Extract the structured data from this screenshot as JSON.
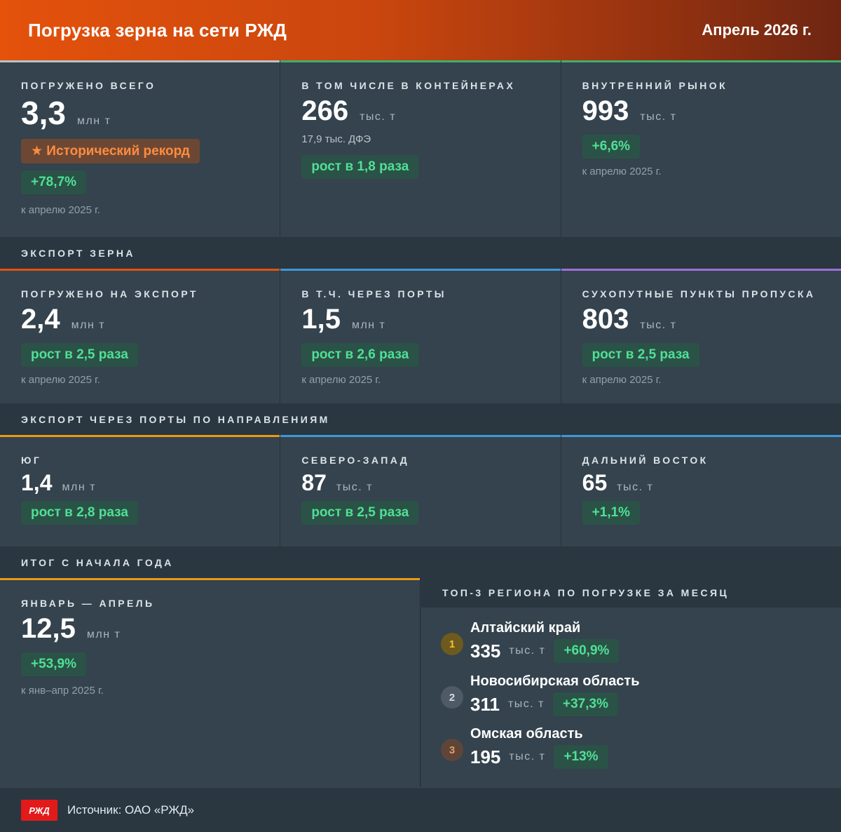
{
  "header": {
    "title": "Погрузка зерна на сети РЖД",
    "date": "Апрель 2026 г."
  },
  "colors": {
    "orange": "#e4520c",
    "green": "#4fe095",
    "blue": "#3f97d8",
    "purple": "#9d6fd8",
    "yellow": "#e89a12",
    "gray": "#b9c1c7"
  },
  "top_row": [
    {
      "label": "ПОГРУЖЕНО ВСЕГО",
      "value": "3,3",
      "unit": "млн т",
      "record": "★ Исторический рекорд",
      "change": "+78,7%",
      "compare": "к апрелю 2025 г."
    },
    {
      "label": "В ТОМ ЧИСЛЕ В КОНТЕЙНЕРАХ",
      "value": "266",
      "unit": "тыс. т",
      "subnote": "17,9 тыс. ДФЭ",
      "change": "рост в 1,8 раза"
    },
    {
      "label": "ВНУТРЕННИЙ РЫНОК",
      "value": "993",
      "unit": "тыс. т",
      "change": "+6,6%",
      "compare": "к апрелю 2025 г."
    }
  ],
  "export_section": {
    "label": "ЭКСПОРТ ЗЕРНА"
  },
  "export_row": [
    {
      "label": "ПОГРУЖЕНО НА ЭКСПОРТ",
      "value": "2,4",
      "unit": "млн т",
      "change": "рост в 2,5 раза",
      "compare": "к апрелю 2025 г."
    },
    {
      "label": "В Т.Ч. ЧЕРЕЗ ПОРТЫ",
      "value": "1,5",
      "unit": "млн т",
      "change": "рост в 2,6 раза",
      "compare": "к апрелю 2025 г."
    },
    {
      "label": "СУХОПУТНЫЕ ПУНКТЫ ПРОПУСКА",
      "value": "803",
      "unit": "тыс. т",
      "change": "рост в 2,5 раза",
      "compare": "к апрелю 2025 г."
    }
  ],
  "ports_section": {
    "label": "ЭКСПОРТ ЧЕРЕЗ ПОРТЫ ПО НАПРАВЛЕНИЯМ"
  },
  "ports_row": [
    {
      "label": "ЮГ",
      "value": "1,4",
      "unit": "млн т",
      "change": "рост в 2,8 раза"
    },
    {
      "label": "СЕВЕРО-ЗАПАД",
      "value": "87",
      "unit": "тыс. т",
      "change": "рост в 2,5 раза"
    },
    {
      "label": "ДАЛЬНИЙ ВОСТОК",
      "value": "65",
      "unit": "тыс. т",
      "change": "+1,1%"
    }
  ],
  "ytd_section": {
    "label": "ИТОГ С НАЧАЛА ГОДА"
  },
  "ytd": {
    "label": "ЯНВАРЬ — АПРЕЛЬ",
    "value": "12,5",
    "unit": "млн т",
    "change": "+53,9%",
    "compare": "к янв–апр 2025 г."
  },
  "top3": {
    "label": "ТОП-3 РЕГИОНА ПО ПОГРУЗКЕ ЗА МЕСЯЦ",
    "regions": [
      {
        "rank": "1",
        "name": "Алтайский край",
        "value": "335",
        "unit": "тыс. т",
        "change": "+60,9%"
      },
      {
        "rank": "2",
        "name": "Новосибирская область",
        "value": "311",
        "unit": "тыс. т",
        "change": "+37,3%"
      },
      {
        "rank": "3",
        "name": "Омская область",
        "value": "195",
        "unit": "тыс. т",
        "change": "+13%"
      }
    ]
  },
  "footer": {
    "logo_text": "РЖД",
    "source": "Источник: ОАО «РЖД»"
  }
}
